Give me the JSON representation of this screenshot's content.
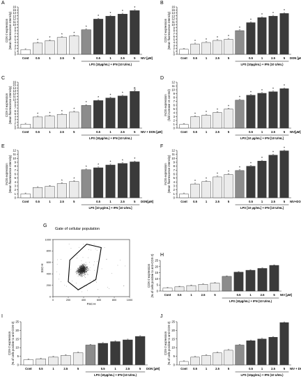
{
  "chart_data": [
    {
      "panel": "A",
      "type": "bar",
      "ylabel": "COX-2 expression\n(Mean fluorescence intensity)",
      "ylim": [
        0,
        16
      ],
      "yticks": [
        0,
        1,
        2,
        3,
        4,
        5,
        6,
        7,
        8,
        9,
        10,
        11,
        12,
        13,
        14,
        15,
        16
      ],
      "categories": [
        "Cont",
        "0.5",
        "1",
        "2.5",
        "5",
        "LPS",
        "0.5",
        "1",
        "2.5",
        "5"
      ],
      "values": [
        1.6,
        3.8,
        4.6,
        5.7,
        6.2,
        8.3,
        11.9,
        12.9,
        13.6,
        14.8
      ],
      "annotations": [
        "",
        "*",
        "*",
        "*",
        "*",
        "*",
        "*",
        "*",
        "*",
        "*"
      ],
      "unit_label": "NIV [µM]",
      "group_label": "LPS (10µg/mL) + IFN (10 U/mL)"
    },
    {
      "panel": "B",
      "type": "bar",
      "ylabel": "COX-2 expression\n(Mean fluorescence intensity)",
      "ylim": [
        0,
        16
      ],
      "yticks": [
        0,
        1,
        2,
        3,
        4,
        5,
        6,
        7,
        8,
        9,
        10,
        11,
        12,
        13,
        14,
        15,
        16
      ],
      "categories": [
        "Cont",
        "0.5",
        "1",
        "2.5",
        "5",
        "LPS",
        "0.5",
        "1",
        "2.5",
        "5"
      ],
      "values": [
        1.7,
        3.5,
        4.0,
        4.7,
        5.1,
        8.0,
        10.7,
        12.4,
        12.9,
        13.8
      ],
      "annotations": [
        "",
        "*",
        "*",
        "*",
        "*",
        "*",
        "*",
        "*",
        "*",
        "*"
      ],
      "unit_label": "DON [µM]",
      "group_label": "LPS (10µg/mL) + IFN (10 U/mL)"
    },
    {
      "panel": "C",
      "type": "bar",
      "ylabel": "COX-2 expression\n(Mean fluorescence intensity)",
      "ylim": [
        0,
        16
      ],
      "yticks": [
        0,
        1,
        2,
        3,
        4,
        5,
        6,
        7,
        8,
        9,
        10,
        11,
        12,
        13,
        14,
        15,
        16
      ],
      "categories": [
        "Cont",
        "0.5",
        "1",
        "2.5",
        "5",
        "LPS",
        "0.5",
        "1",
        "2.5",
        "5"
      ],
      "values": [
        1.4,
        3.9,
        4.2,
        4.8,
        5.6,
        7.9,
        9.6,
        10.5,
        11.2,
        12.8
      ],
      "annotations": [
        "",
        "*",
        "*",
        "*",
        "*",
        "*",
        "*",
        "*",
        "*",
        "§"
      ],
      "unit_label": "NIV + DON [µM]",
      "group_label": "LPS (10µg/mL) + IFN (10 U/mL)"
    },
    {
      "panel": "D",
      "type": "bar",
      "ylabel": "iNOS expression\n(fold increase vs control)",
      "ylim": [
        0,
        12
      ],
      "yticks": [
        0,
        1,
        2,
        3,
        4,
        5,
        6,
        7,
        8,
        9,
        10,
        11,
        12
      ],
      "categories": [
        "Cont",
        "0.5",
        "1",
        "2.5",
        "5",
        "LPS",
        "0.5",
        "1",
        "2.5",
        "5"
      ],
      "values": [
        1.0,
        3.0,
        3.4,
        4.1,
        5.0,
        7.3,
        8.6,
        9.1,
        9.5,
        10.3
      ],
      "annotations": [
        "",
        "*",
        "*",
        "*",
        "*",
        "*",
        "*",
        "*",
        "*",
        "*"
      ],
      "unit_label": "NIV[µM]",
      "group_label": "LPS [10 µg/mL] + IFN [10 U/mL]"
    },
    {
      "panel": "E",
      "type": "bar",
      "ylabel": "iNOS expression\n(Mean fluorescence intensity)",
      "ylim": [
        0,
        12
      ],
      "yticks": [
        0,
        1,
        2,
        3,
        4,
        5,
        6,
        7,
        8,
        9,
        10,
        11,
        12
      ],
      "categories": [
        "Cont",
        "0.5",
        "1",
        "2.5",
        "5",
        "LPS",
        "0.5",
        "1",
        "2.5",
        "5"
      ],
      "values": [
        1.0,
        2.6,
        2.9,
        3.6,
        4.1,
        7.1,
        7.6,
        8.3,
        8.7,
        9.1
      ],
      "annotations": [
        "",
        "",
        "",
        "*",
        "*",
        "*",
        "*",
        "*",
        "*",
        "*"
      ],
      "unit_label": "DON[µM]",
      "group_label": "LPS [10 µg/mL] + IFN [10 U/mL]"
    },
    {
      "panel": "F",
      "type": "bar",
      "ylabel": "iNOS expression\n(Mean fluorescence intensity)",
      "ylim": [
        0,
        12
      ],
      "yticks": [
        0,
        1,
        2,
        3,
        4,
        5,
        6,
        7,
        8,
        9,
        10,
        11,
        12
      ],
      "categories": [
        "Cont",
        "0.5",
        "1",
        "2.5",
        "5",
        "LPS",
        "0.5",
        "1",
        "2.5",
        "5"
      ],
      "values": [
        1.0,
        3.5,
        4.1,
        5.3,
        5.9,
        6.9,
        8.0,
        9.3,
        10.8,
        11.9
      ],
      "annotations": [
        "",
        "*",
        "*",
        "*",
        "*",
        "*",
        "*",
        "*",
        "*",
        "*"
      ],
      "unit_label": "NIV+DON[µM]",
      "group_label": "LPS [10 µg/mL] + IFN [10 U/mL]"
    },
    {
      "panel": "G",
      "type": "scatter",
      "title": "Gate of cellular population",
      "xlabel": "FSC-H",
      "ylabel": "SSC-H",
      "xlim": [
        0,
        1000
      ],
      "ylim": [
        0,
        1000
      ],
      "xticks": [
        0,
        200,
        400,
        600,
        800,
        1000
      ],
      "yticks": [
        0,
        200,
        400,
        600,
        800,
        1000
      ]
    },
    {
      "panel": "H",
      "type": "bar",
      "ylabel": "COX-2 expression\n(% of cells positive to anti-COX-2)",
      "ylim": [
        0,
        25
      ],
      "yticks": [
        0,
        5,
        10,
        15,
        20,
        25
      ],
      "categories": [
        "Cont",
        "0.5",
        "1",
        "2.5",
        "5",
        "LPS",
        "0.5",
        "1",
        "2.5",
        "5"
      ],
      "values": [
        2.5,
        3.5,
        4.5,
        5.5,
        6.5,
        12.0,
        15.5,
        17.0,
        18.5,
        21.0
      ],
      "unit_label": "NIV [µM]",
      "group_label": "LPS (10µg/mL) + IFN (10 U/mL)"
    },
    {
      "panel": "I",
      "type": "bar",
      "ylabel": "COX-2 expression\n(% of cells positive to anti-COX-2)",
      "ylim": [
        0,
        25
      ],
      "yticks": [
        0,
        5,
        10,
        15,
        20,
        25
      ],
      "categories": [
        "Cont",
        "0.5",
        "1",
        "2.5",
        "5",
        "LPS",
        "0.5",
        "1",
        "2.5",
        "5"
      ],
      "values": [
        3.0,
        3.5,
        4.5,
        5.5,
        7.0,
        11.5,
        12.5,
        13.5,
        14.5,
        16.5
      ],
      "unit_label": "DON [µM]",
      "group_label": "LPS (10µg/mL) + IFN (10 U/mL)"
    },
    {
      "panel": "J",
      "type": "bar",
      "ylabel": "COX-2 expression\n(% of cells positive to anti-COX-2)",
      "ylim": [
        0,
        25
      ],
      "yticks": [
        0,
        5,
        10,
        15,
        20,
        25
      ],
      "categories": [
        "Cont",
        "0.5",
        "1",
        "2.5",
        "5",
        "LPS",
        "0.5",
        "1",
        "2.5",
        "5"
      ],
      "values": [
        2.0,
        4.5,
        5.5,
        7.0,
        8.5,
        11.5,
        14.0,
        15.0,
        16.0,
        24.5
      ],
      "unit_label": "NIV + DON [µM]",
      "group_label": "LPS (10µg/mL) + IFN (10 U/mL)"
    }
  ],
  "colors": {
    "bar_control": "#ffffff",
    "bar_tox": "#ebebeb",
    "bar_lps": "#8c8c8c",
    "bar_combo": "#3a3a3a",
    "axis": "#222222"
  }
}
